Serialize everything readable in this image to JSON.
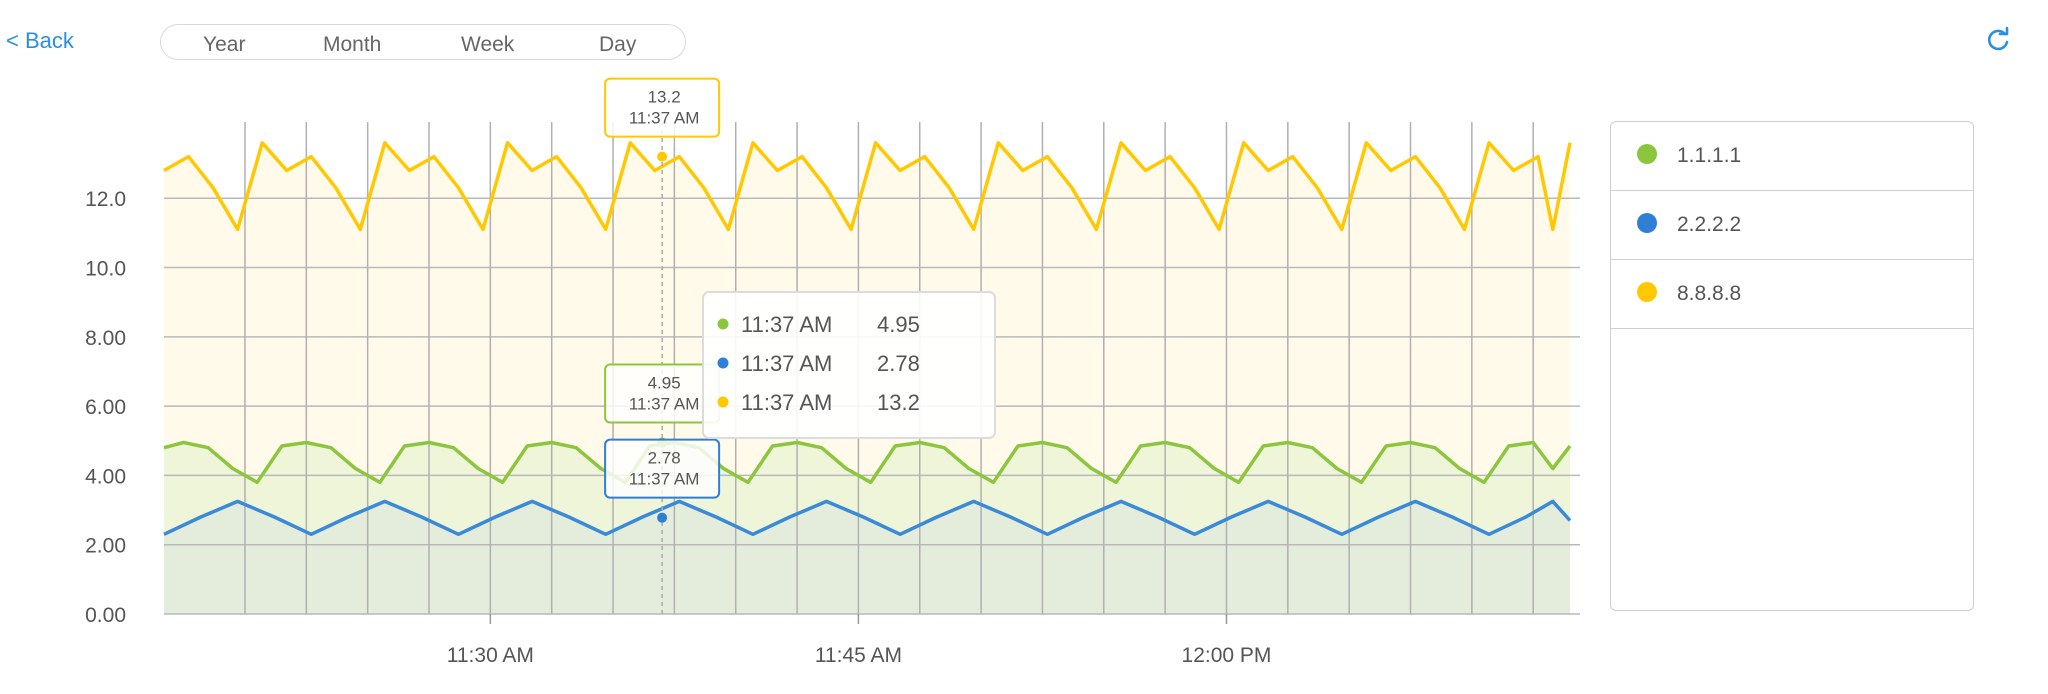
{
  "nav": {
    "back_label": "< Back"
  },
  "range_tabs": [
    "Year",
    "Month",
    "Week",
    "Day"
  ],
  "icons": {
    "back": "chevron-left-icon",
    "refresh": "refresh-icon"
  },
  "legend": [
    {
      "label": "1.1.1.1",
      "color": "#8cc63f"
    },
    {
      "label": "2.2.2.2",
      "color": "#2f7fd6"
    },
    {
      "label": "8.8.8.8",
      "color": "#ffc800"
    }
  ],
  "chart_data": {
    "type": "area",
    "x_tick_labels": [
      "11:30 AM",
      "11:45 AM",
      "12:00 PM"
    ],
    "x_tick_minutes": [
      30,
      45,
      60
    ],
    "xlim_minutes": [
      16.7,
      74.0
    ],
    "ylim": [
      0,
      14.2
    ],
    "y_ticks": [
      0,
      2,
      4,
      6,
      8,
      10,
      12
    ],
    "y_tick_labels": [
      "0.00",
      "2.00",
      "4.00",
      "6.00",
      "8.00",
      "10.0",
      "12.0"
    ],
    "grid": true,
    "series": [
      {
        "name": "1.1.1.1",
        "color": "#8cc63f",
        "fill": "#eef5d8",
        "x_minutes": [
          16.7,
          17.5,
          18.5,
          19.5,
          20.5,
          21.5,
          22.5,
          23.5,
          24.5,
          25.5,
          26.5,
          27.5,
          28.5,
          29.5,
          30.5,
          31.5,
          32.5,
          33.5,
          34.5,
          35.5,
          36.5,
          37.5,
          38.5,
          39.5,
          40.5,
          41.5,
          42.5,
          43.5,
          44.5,
          45.5,
          46.5,
          47.5,
          48.5,
          49.5,
          50.5,
          51.5,
          52.5,
          53.5,
          54.5,
          55.5,
          56.5,
          57.5,
          58.5,
          59.5,
          60.5,
          61.5,
          62.5,
          63.5,
          64.5,
          65.5,
          66.5,
          67.5,
          68.5,
          69.5,
          70.5,
          71.5,
          72.5,
          73.3,
          74.0
        ],
        "values": [
          4.8,
          4.95,
          4.8,
          4.2,
          3.8,
          4.85,
          4.95,
          4.8,
          4.2,
          3.8,
          4.85,
          4.95,
          4.8,
          4.2,
          3.8,
          4.85,
          4.95,
          4.8,
          4.2,
          3.8,
          4.85,
          4.95,
          4.8,
          4.2,
          3.8,
          4.85,
          4.95,
          4.8,
          4.2,
          3.8,
          4.85,
          4.95,
          4.8,
          4.2,
          3.8,
          4.85,
          4.95,
          4.8,
          4.2,
          3.8,
          4.85,
          4.95,
          4.8,
          4.2,
          3.8,
          4.85,
          4.95,
          4.8,
          4.2,
          3.8,
          4.85,
          4.95,
          4.8,
          4.2,
          3.8,
          4.85,
          4.95,
          4.2,
          4.85
        ]
      },
      {
        "name": "2.2.2.2",
        "color": "#3a8ad8",
        "fill": "#e4ecdc",
        "x_minutes": [
          16.7,
          18.2,
          19.7,
          21.2,
          22.7,
          24.2,
          25.7,
          27.2,
          28.7,
          30.2,
          31.7,
          33.2,
          34.7,
          36.2,
          37.7,
          39.2,
          40.7,
          42.2,
          43.7,
          45.2,
          46.7,
          48.2,
          49.7,
          51.2,
          52.7,
          54.2,
          55.7,
          57.2,
          58.7,
          60.2,
          61.7,
          63.2,
          64.7,
          66.2,
          67.7,
          69.2,
          70.7,
          72.2,
          73.3,
          74.0
        ],
        "values": [
          2.3,
          2.8,
          3.25,
          2.8,
          2.3,
          2.8,
          3.25,
          2.8,
          2.3,
          2.8,
          3.25,
          2.8,
          2.3,
          2.8,
          3.25,
          2.8,
          2.3,
          2.8,
          3.25,
          2.8,
          2.3,
          2.8,
          3.25,
          2.8,
          2.3,
          2.8,
          3.25,
          2.8,
          2.3,
          2.8,
          3.25,
          2.8,
          2.3,
          2.8,
          3.25,
          2.8,
          2.3,
          2.8,
          3.25,
          2.7
        ]
      },
      {
        "name": "8.8.8.8",
        "color": "#ffc800",
        "fill": "#fffaea",
        "x_minutes": [
          16.7,
          17.7,
          18.7,
          19.7,
          20.7,
          21.7,
          22.7,
          23.7,
          24.7,
          25.7,
          26.7,
          27.7,
          28.7,
          29.7,
          30.7,
          31.7,
          32.7,
          33.7,
          34.7,
          35.7,
          36.7,
          37.7,
          38.7,
          39.7,
          40.7,
          41.7,
          42.7,
          43.7,
          44.7,
          45.7,
          46.7,
          47.7,
          48.7,
          49.7,
          50.7,
          51.7,
          52.7,
          53.7,
          54.7,
          55.7,
          56.7,
          57.7,
          58.7,
          59.7,
          60.7,
          61.7,
          62.7,
          63.7,
          64.7,
          65.7,
          66.7,
          67.7,
          68.7,
          69.7,
          70.7,
          71.7,
          72.7,
          73.3,
          74.0
        ],
        "values": [
          12.8,
          13.2,
          12.3,
          11.1,
          13.6,
          12.8,
          13.2,
          12.3,
          11.1,
          13.6,
          12.8,
          13.2,
          12.3,
          11.1,
          13.6,
          12.8,
          13.2,
          12.3,
          11.1,
          13.6,
          12.8,
          13.2,
          12.3,
          11.1,
          13.6,
          12.8,
          13.2,
          12.3,
          11.1,
          13.6,
          12.8,
          13.2,
          12.3,
          11.1,
          13.6,
          12.8,
          13.2,
          12.3,
          11.1,
          13.6,
          12.8,
          13.2,
          12.3,
          11.1,
          13.6,
          12.8,
          13.2,
          12.3,
          11.1,
          13.6,
          12.8,
          13.2,
          12.3,
          11.1,
          13.6,
          12.8,
          13.2,
          11.1,
          13.6
        ]
      }
    ],
    "crosshair": {
      "x_minutes": 37.0,
      "time_label": "11:37 AM",
      "points": [
        {
          "series": "8.8.8.8",
          "value": 13.2,
          "value_label": "13.2",
          "color": "#ffc800"
        },
        {
          "series": "1.1.1.1",
          "value": 4.95,
          "value_label": "4.95",
          "color": "#8cc63f"
        },
        {
          "series": "2.2.2.2",
          "value": 2.78,
          "value_label": "2.78",
          "color": "#2f7fd6"
        }
      ]
    },
    "tooltip_rows": [
      {
        "time": "11:37 AM",
        "value": "4.95",
        "color": "#8cc63f"
      },
      {
        "time": "11:37 AM",
        "value": "2.78",
        "color": "#2f7fd6"
      },
      {
        "time": "11:37 AM",
        "value": "13.2",
        "color": "#ffc800"
      }
    ]
  }
}
